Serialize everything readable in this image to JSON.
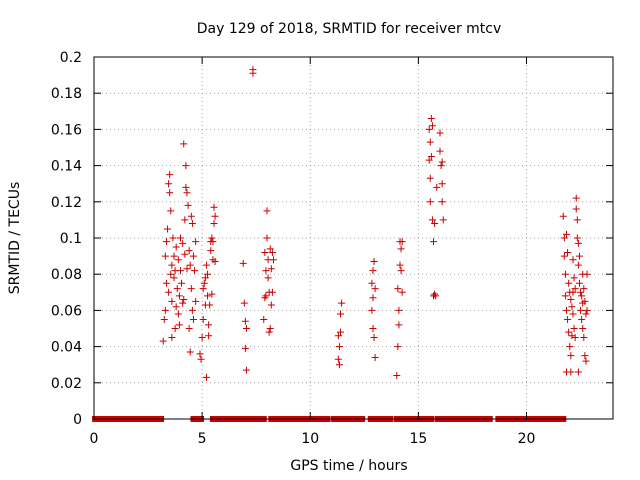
{
  "chart_data": {
    "type": "scatter",
    "title": "Day 129 of 2018, SRMTID for receiver mtcv",
    "xlabel": "GPS time / hours",
    "ylabel": "SRMTID / TECUs",
    "xlim": [
      0,
      24
    ],
    "ylim": [
      0,
      0.2
    ],
    "x_ticks": [
      0,
      5,
      10,
      15,
      20
    ],
    "x_tick_labels": [
      "0",
      "5",
      "10",
      "15",
      "20"
    ],
    "y_ticks": [
      0,
      0.02,
      0.04,
      0.06,
      0.08,
      0.1,
      0.12,
      0.14,
      0.16,
      0.18,
      0.2
    ],
    "y_tick_labels": [
      "0",
      "0.02",
      "0.04",
      "0.06",
      "0.08",
      "0.1",
      "0.12",
      "0.14",
      "0.16",
      "0.18",
      "0.2"
    ],
    "grid": true,
    "marker": "+",
    "color": "#cc0000",
    "zero_runs": [
      [
        0.05,
        3.1
      ],
      [
        4.6,
        4.95
      ],
      [
        5.5,
        6.9
      ],
      [
        7.1,
        7.85
      ],
      [
        8.2,
        10.8
      ],
      [
        11.1,
        12.4
      ],
      [
        12.8,
        13.7
      ],
      [
        14.0,
        14.5
      ],
      [
        14.7,
        15.6
      ],
      [
        15.9,
        18.3
      ],
      [
        18.7,
        21.7
      ]
    ],
    "series": [
      {
        "name": "SRMTID",
        "points": [
          [
            3.2,
            0.043
          ],
          [
            3.25,
            0.055
          ],
          [
            3.3,
            0.06
          ],
          [
            3.3,
            0.09
          ],
          [
            3.35,
            0.098
          ],
          [
            3.4,
            0.105
          ],
          [
            3.45,
            0.07
          ],
          [
            3.45,
            0.13
          ],
          [
            3.5,
            0.135
          ],
          [
            3.5,
            0.125
          ],
          [
            3.55,
            0.115
          ],
          [
            3.55,
            0.08
          ],
          [
            3.6,
            0.085
          ],
          [
            3.6,
            0.065
          ],
          [
            3.65,
            0.1
          ],
          [
            3.7,
            0.09
          ],
          [
            3.7,
            0.078
          ],
          [
            3.75,
            0.05
          ],
          [
            3.8,
            0.095
          ],
          [
            3.8,
            0.062
          ],
          [
            3.85,
            0.072
          ],
          [
            3.9,
            0.088
          ],
          [
            3.9,
            0.058
          ],
          [
            3.95,
            0.068
          ],
          [
            4.0,
            0.1
          ],
          [
            4.0,
            0.082
          ],
          [
            4.05,
            0.075
          ],
          [
            4.1,
            0.097
          ],
          [
            4.1,
            0.064
          ],
          [
            4.15,
            0.152
          ],
          [
            4.2,
            0.11
          ],
          [
            4.2,
            0.091
          ],
          [
            4.25,
            0.14
          ],
          [
            4.25,
            0.128
          ],
          [
            4.3,
            0.125
          ],
          [
            4.3,
            0.083
          ],
          [
            4.35,
            0.118
          ],
          [
            4.4,
            0.093
          ],
          [
            4.4,
            0.05
          ],
          [
            4.45,
            0.085
          ],
          [
            4.45,
            0.037
          ],
          [
            4.5,
            0.112
          ],
          [
            4.5,
            0.072
          ],
          [
            4.55,
            0.108
          ],
          [
            4.55,
            0.06
          ],
          [
            4.6,
            0.09
          ],
          [
            4.6,
            0.055
          ],
          [
            4.65,
            0.082
          ],
          [
            4.7,
            0.098
          ],
          [
            4.7,
            0.065
          ],
          [
            3.35,
            0.075
          ],
          [
            3.6,
            0.045
          ],
          [
            3.75,
            0.082
          ],
          [
            3.95,
            0.052
          ],
          [
            4.15,
            0.066
          ],
          [
            4.9,
            0.036
          ],
          [
            4.95,
            0.033
          ],
          [
            5.0,
            0.045
          ],
          [
            5.05,
            0.055
          ],
          [
            5.05,
            0.072
          ],
          [
            5.1,
            0.075
          ],
          [
            5.15,
            0.078
          ],
          [
            5.15,
            0.063
          ],
          [
            5.2,
            0.023
          ],
          [
            5.25,
            0.068
          ],
          [
            5.25,
            0.08
          ],
          [
            5.3,
            0.046
          ],
          [
            5.3,
            0.052
          ],
          [
            5.35,
            0.063
          ],
          [
            5.4,
            0.093
          ],
          [
            5.4,
            0.098
          ],
          [
            5.45,
            0.1
          ],
          [
            5.5,
            0.088
          ],
          [
            5.5,
            0.098
          ],
          [
            5.55,
            0.108
          ],
          [
            5.55,
            0.117
          ],
          [
            5.6,
            0.087
          ],
          [
            5.6,
            0.112
          ],
          [
            5.2,
            0.085
          ],
          [
            5.45,
            0.069
          ],
          [
            6.9,
            0.086
          ],
          [
            6.95,
            0.064
          ],
          [
            7.0,
            0.054
          ],
          [
            7.0,
            0.039
          ],
          [
            7.05,
            0.027
          ],
          [
            7.05,
            0.05
          ],
          [
            7.35,
            0.193
          ],
          [
            7.35,
            0.191
          ],
          [
            7.9,
            0.092
          ],
          [
            7.9,
            0.067
          ],
          [
            7.95,
            0.082
          ],
          [
            7.95,
            0.068
          ],
          [
            8.0,
            0.115
          ],
          [
            8.0,
            0.1
          ],
          [
            8.05,
            0.088
          ],
          [
            8.05,
            0.078
          ],
          [
            8.1,
            0.07
          ],
          [
            8.1,
            0.048
          ],
          [
            8.15,
            0.094
          ],
          [
            8.2,
            0.083
          ],
          [
            8.2,
            0.063
          ],
          [
            8.25,
            0.092
          ],
          [
            8.25,
            0.07
          ],
          [
            8.3,
            0.088
          ],
          [
            7.85,
            0.055
          ],
          [
            8.15,
            0.05
          ],
          [
            11.3,
            0.046
          ],
          [
            11.3,
            0.033
          ],
          [
            11.35,
            0.04
          ],
          [
            11.35,
            0.03
          ],
          [
            11.4,
            0.048
          ],
          [
            11.4,
            0.058
          ],
          [
            11.45,
            0.064
          ],
          [
            12.85,
            0.075
          ],
          [
            12.85,
            0.06
          ],
          [
            12.9,
            0.082
          ],
          [
            12.9,
            0.05
          ],
          [
            12.95,
            0.087
          ],
          [
            12.95,
            0.045
          ],
          [
            13.0,
            0.072
          ],
          [
            13.0,
            0.034
          ],
          [
            12.9,
            0.067
          ],
          [
            14.0,
            0.024
          ],
          [
            14.05,
            0.04
          ],
          [
            14.05,
            0.072
          ],
          [
            14.1,
            0.06
          ],
          [
            14.1,
            0.052
          ],
          [
            14.15,
            0.098
          ],
          [
            14.15,
            0.085
          ],
          [
            14.2,
            0.094
          ],
          [
            14.2,
            0.082
          ],
          [
            14.25,
            0.07
          ],
          [
            14.25,
            0.098
          ],
          [
            15.5,
            0.16
          ],
          [
            15.5,
            0.143
          ],
          [
            15.55,
            0.133
          ],
          [
            15.55,
            0.153
          ],
          [
            15.6,
            0.166
          ],
          [
            15.6,
            0.145
          ],
          [
            15.65,
            0.162
          ],
          [
            15.65,
            0.11
          ],
          [
            15.7,
            0.068
          ],
          [
            15.7,
            0.098
          ],
          [
            15.75,
            0.069
          ],
          [
            15.75,
            0.108
          ],
          [
            15.8,
            0.068
          ],
          [
            15.85,
            0.128
          ],
          [
            16.0,
            0.158
          ],
          [
            16.0,
            0.148
          ],
          [
            16.05,
            0.14
          ],
          [
            16.1,
            0.13
          ],
          [
            16.1,
            0.12
          ],
          [
            16.15,
            0.11
          ],
          [
            15.55,
            0.12
          ],
          [
            16.1,
            0.142
          ],
          [
            21.7,
            0.112
          ],
          [
            21.75,
            0.1
          ],
          [
            21.75,
            0.09
          ],
          [
            21.8,
            0.08
          ],
          [
            21.8,
            0.068
          ],
          [
            21.85,
            0.102
          ],
          [
            21.85,
            0.06
          ],
          [
            21.9,
            0.092
          ],
          [
            21.9,
            0.055
          ],
          [
            21.95,
            0.075
          ],
          [
            21.95,
            0.048
          ],
          [
            22.0,
            0.07
          ],
          [
            22.0,
            0.04
          ],
          [
            22.05,
            0.066
          ],
          [
            22.05,
            0.035
          ],
          [
            22.1,
            0.062
          ],
          [
            22.1,
            0.046
          ],
          [
            22.15,
            0.058
          ],
          [
            22.15,
            0.088
          ],
          [
            22.2,
            0.05
          ],
          [
            22.2,
            0.078
          ],
          [
            22.25,
            0.072
          ],
          [
            22.25,
            0.045
          ],
          [
            22.3,
            0.122
          ],
          [
            22.3,
            0.116
          ],
          [
            22.35,
            0.11
          ],
          [
            22.35,
            0.1
          ],
          [
            22.4,
            0.097
          ],
          [
            22.4,
            0.085
          ],
          [
            22.45,
            0.09
          ],
          [
            22.45,
            0.075
          ],
          [
            22.5,
            0.07
          ],
          [
            22.5,
            0.06
          ],
          [
            22.55,
            0.068
          ],
          [
            22.55,
            0.055
          ],
          [
            22.6,
            0.064
          ],
          [
            22.6,
            0.05
          ],
          [
            22.65,
            0.072
          ],
          [
            22.65,
            0.045
          ],
          [
            22.7,
            0.065
          ],
          [
            22.7,
            0.035
          ],
          [
            22.75,
            0.058
          ],
          [
            22.75,
            0.032
          ],
          [
            22.8,
            0.08
          ],
          [
            22.8,
            0.06
          ],
          [
            21.85,
            0.026
          ],
          [
            22.05,
            0.026
          ],
          [
            22.4,
            0.026
          ],
          [
            22.6,
            0.08
          ],
          [
            22.15,
            0.07
          ]
        ]
      }
    ]
  }
}
